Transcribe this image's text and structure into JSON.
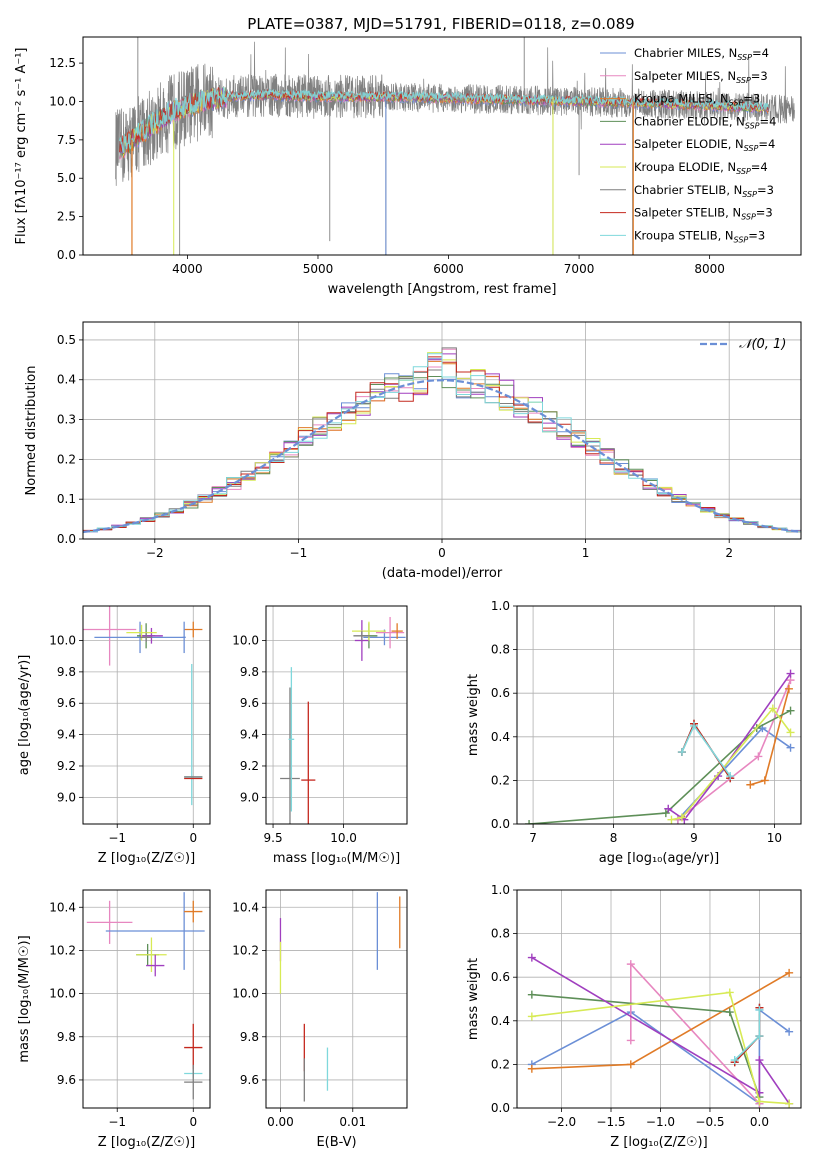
{
  "figure": {
    "title": "PLATE=0387, MJD=51791, FIBERID=0118, z=0.089"
  },
  "colors": {
    "chabrier_miles": "#6b8fd6",
    "salpeter_miles": "#e787c0",
    "kroupa_miles": "#e07b27",
    "chabrier_elodie": "#5e8f58",
    "salpeter_elodie": "#a03fbf",
    "kroupa_elodie": "#d7ea55",
    "chabrier_stelib": "#7f7f7f",
    "salpeter_stelib": "#c4281e",
    "kroupa_stelib": "#7fd8dc",
    "normal_curve": "#6b8fd6",
    "grid": "#b0b0b0"
  },
  "chart_data": [
    {
      "id": "spectrum",
      "type": "line",
      "title": "PLATE=0387, MJD=51791, FIBERID=0118, z=0.089",
      "xlabel": "wavelength [Angstrom, rest frame]",
      "ylabel": "Flux [fλ10⁻¹⁷ erg cm⁻² s⁻¹ A⁻¹]",
      "xlim": [
        3200,
        8700
      ],
      "ylim": [
        0,
        14.2
      ],
      "xticks": [
        "4000",
        "5000",
        "6000",
        "7000",
        "8000"
      ],
      "yticks": [
        "0.0",
        "2.5",
        "5.0",
        "7.5",
        "10.0",
        "12.5"
      ],
      "grid": false,
      "legend_position": "right",
      "legend": [
        {
          "label": "Chabrier MILES, N",
          "sub": "SSP",
          "suffix": "=4",
          "color_key": "chabrier_miles"
        },
        {
          "label": "Salpeter MILES, N",
          "sub": "SSP",
          "suffix": "=3",
          "color_key": "salpeter_miles"
        },
        {
          "label": "Kroupa MILES, N",
          "sub": "SSP",
          "suffix": "=3",
          "color_key": "kroupa_miles"
        },
        {
          "label": "Chabrier ELODIE, N",
          "sub": "SSP",
          "suffix": "=4",
          "color_key": "chabrier_elodie"
        },
        {
          "label": "Salpeter ELODIE, N",
          "sub": "SSP",
          "suffix": "=4",
          "color_key": "salpeter_elodie"
        },
        {
          "label": "Kroupa ELODIE, N",
          "sub": "SSP",
          "suffix": "=4",
          "color_key": "kroupa_elodie"
        },
        {
          "label": "Chabrier STELIB, N",
          "sub": "SSP",
          "suffix": "=3",
          "color_key": "chabrier_stelib"
        },
        {
          "label": "Salpeter STELIB, N",
          "sub": "SSP",
          "suffix": "=3",
          "color_key": "salpeter_stelib"
        },
        {
          "label": "Kroupa STELIB, N",
          "sub": "SSP",
          "suffix": "=3",
          "color_key": "kroupa_stelib"
        }
      ],
      "continuum": {
        "x": [
          3500,
          3700,
          3900,
          4100,
          4300,
          4600,
          5000,
          5500,
          6000,
          6500,
          7000,
          7400,
          7800,
          8200,
          8600
        ],
        "y": [
          7.0,
          8.3,
          9.4,
          10.0,
          10.3,
          10.4,
          10.3,
          10.3,
          10.2,
          10.1,
          10.0,
          9.9,
          9.8,
          9.65,
          9.5
        ]
      }
    },
    {
      "id": "residuals",
      "type": "histogram",
      "xlabel": "(data-model)/error",
      "ylabel": "Normed distribution",
      "xlim": [
        -2.5,
        2.5
      ],
      "ylim": [
        0,
        0.545
      ],
      "xticks": [
        "−2",
        "−1",
        "0",
        "1",
        "2"
      ],
      "yticks": [
        "0.0",
        "0.1",
        "0.2",
        "0.3",
        "0.4",
        "0.5"
      ],
      "grid": true,
      "legend_label": "𝒩(0, 1)",
      "legend_position": "top-right",
      "bin_width": 0.1
    },
    {
      "id": "age_vs_z",
      "type": "scatter",
      "xlabel": "Z [log₁₀(Z/Z☉)]",
      "ylabel": "age  [log₁₀(age/yr)]",
      "xlim": [
        -1.45,
        0.22
      ],
      "ylim": [
        8.83,
        10.22
      ],
      "xticks": [
        -1,
        0
      ],
      "yticks": [
        9.0,
        9.2,
        9.4,
        9.6,
        9.8,
        10.0
      ],
      "grid": true,
      "points": [
        {
          "c": "salpeter_miles",
          "x": -1.1,
          "xerr": 0.35,
          "y": 10.07,
          "yerr": 0.23
        },
        {
          "c": "chabrier_miles",
          "x": -0.7,
          "xerr": 0.6,
          "y": 10.02,
          "yerr": 0.1
        },
        {
          "c": "chabrier_elodie",
          "x": -0.62,
          "xerr": 0.12,
          "y": 10.03,
          "yerr": 0.08
        },
        {
          "c": "salpeter_elodie",
          "x": -0.55,
          "xerr": 0.15,
          "y": 10.03,
          "yerr": 0.05
        },
        {
          "c": "kroupa_elodie",
          "x": -0.68,
          "xerr": 0.2,
          "y": 10.05,
          "yerr": 0.05
        },
        {
          "c": "chabrier_stelib",
          "x": -0.62,
          "xerr": 0.08,
          "y": 10.02,
          "yerr": 0.03
        },
        {
          "c": "kroupa_miles",
          "x": 0.0,
          "xerr": 0.12,
          "y": 10.07,
          "yerr": 0.05
        },
        {
          "c": "chabrier_miles",
          "x": -0.12,
          "xerr": 0.02,
          "y": 10.02,
          "yerr": 0.1
        },
        {
          "c": "kroupa_stelib",
          "x": -0.02,
          "xerr": 0.01,
          "y": 9.4,
          "yerr": 0.45
        },
        {
          "c": "salpeter_stelib",
          "x": 0.0,
          "xerr": 0.12,
          "y": 9.12,
          "yerr": 0.0
        },
        {
          "c": "kroupa_stelib",
          "x": 0.0,
          "xerr": 0.12,
          "y": 9.13,
          "yerr": 0.0
        },
        {
          "c": "chabrier_stelib",
          "x": 0.0,
          "xerr": 0.12,
          "y": 9.13,
          "yerr": 0.0
        }
      ]
    },
    {
      "id": "age_vs_mass",
      "type": "scatter",
      "xlabel": "mass [log₁₀(M/M☉)]",
      "ylabel": "",
      "xlim": [
        9.45,
        10.45
      ],
      "ylim": [
        8.83,
        10.22
      ],
      "xticks": [
        9.5,
        10.0
      ],
      "yticks": [
        9.0,
        9.2,
        9.4,
        9.6,
        9.8,
        10.0
      ],
      "grid": true,
      "points": [
        {
          "c": "chabrier_miles",
          "x": 10.29,
          "xerr": 0.15,
          "y": 10.02,
          "yerr": 0.05
        },
        {
          "c": "salpeter_miles",
          "x": 10.33,
          "xerr": 0.1,
          "y": 10.05,
          "yerr": 0.1
        },
        {
          "c": "kroupa_miles",
          "x": 10.38,
          "xerr": 0.04,
          "y": 10.06,
          "yerr": 0.05
        },
        {
          "c": "chabrier_elodie",
          "x": 10.18,
          "xerr": 0.06,
          "y": 10.03,
          "yerr": 0.08
        },
        {
          "c": "salpeter_elodie",
          "x": 10.13,
          "xerr": 0.05,
          "y": 10.0,
          "yerr": 0.13
        },
        {
          "c": "kroupa_elodie",
          "x": 10.18,
          "xerr": 0.12,
          "y": 10.06,
          "yerr": 0.06
        },
        {
          "c": "chabrier_stelib",
          "x": 10.13,
          "xerr": 0.06,
          "y": 10.03,
          "yerr": 0.03
        },
        {
          "c": "chabrier_stelib",
          "x": 9.62,
          "xerr": 0.07,
          "y": 9.12,
          "yerr": 0.58
        },
        {
          "c": "kroupa_stelib",
          "x": 9.63,
          "xerr": 0.02,
          "y": 9.37,
          "yerr": 0.46
        },
        {
          "c": "salpeter_stelib",
          "x": 9.75,
          "xerr": 0.05,
          "y": 9.11,
          "yerr": 0.5
        }
      ]
    },
    {
      "id": "weight_vs_age",
      "type": "line",
      "xlabel": "age  [log₁₀(age/yr)]",
      "ylabel": "mass weight",
      "xlim": [
        6.8,
        10.33
      ],
      "ylim": [
        0,
        1.0
      ],
      "xticks": [
        7,
        8,
        9,
        10
      ],
      "yticks": [
        0.0,
        0.2,
        0.4,
        0.6,
        0.8,
        1.0
      ],
      "grid": true,
      "series": [
        {
          "c": "chabrier_miles",
          "x": [
            8.8,
            9.85,
            10.2
          ],
          "y": [
            0.02,
            0.44,
            0.35
          ]
        },
        {
          "c": "salpeter_miles",
          "x": [
            8.8,
            9.8,
            10.2
          ],
          "y": [
            0.02,
            0.31,
            0.66
          ]
        },
        {
          "c": "kroupa_miles",
          "x": [
            9.7,
            9.88,
            10.18
          ],
          "y": [
            0.18,
            0.2,
            0.62
          ]
        },
        {
          "c": "chabrier_elodie",
          "x": [
            6.95,
            8.65,
            9.78,
            10.2
          ],
          "y": [
            0.0,
            0.05,
            0.44,
            0.52
          ]
        },
        {
          "c": "salpeter_elodie",
          "x": [
            8.68,
            8.88,
            9.3,
            10.2
          ],
          "y": [
            0.07,
            0.02,
            0.22,
            0.69
          ]
        },
        {
          "c": "kroupa_elodie",
          "x": [
            8.72,
            8.85,
            9.98,
            10.2
          ],
          "y": [
            0.02,
            0.03,
            0.53,
            0.42
          ]
        },
        {
          "c": "chabrier_stelib",
          "x": [
            8.85,
            9.0,
            9.45
          ],
          "y": [
            0.33,
            0.46,
            0.21
          ]
        },
        {
          "c": "salpeter_stelib",
          "x": [
            8.85,
            9.0,
            9.45
          ],
          "y": [
            0.33,
            0.46,
            0.21
          ]
        },
        {
          "c": "kroupa_stelib",
          "x": [
            8.85,
            9.0,
            9.45
          ],
          "y": [
            0.33,
            0.45,
            0.22
          ]
        }
      ]
    },
    {
      "id": "mass_vs_z",
      "type": "scatter",
      "xlabel": "Z [log₁₀(Z/Z☉)]",
      "ylabel": "mass [log₁₀(M/M☉)]",
      "xlim": [
        -1.45,
        0.22
      ],
      "ylim": [
        9.47,
        10.48
      ],
      "xticks": [
        -1,
        0
      ],
      "yticks": [
        9.6,
        9.8,
        10.0,
        10.2,
        10.4
      ],
      "grid": true,
      "points": [
        {
          "c": "salpeter_miles",
          "x": -1.1,
          "xerr": 0.3,
          "y": 10.33,
          "yerr": 0.1
        },
        {
          "c": "chabrier_miles",
          "x": -0.5,
          "xerr": 0.65,
          "y": 10.29,
          "yerr": 0.0
        },
        {
          "c": "chabrier_miles",
          "x": -0.12,
          "xerr": 0.0,
          "y": 10.29,
          "yerr": 0.18
        },
        {
          "c": "kroupa_miles",
          "x": 0.0,
          "xerr": 0.12,
          "y": 10.38,
          "yerr": 0.05
        },
        {
          "c": "chabrier_elodie",
          "x": -0.6,
          "xerr": 0.15,
          "y": 10.18,
          "yerr": 0.05
        },
        {
          "c": "kroupa_elodie",
          "x": -0.55,
          "xerr": 0.2,
          "y": 10.18,
          "yerr": 0.08
        },
        {
          "c": "salpeter_elodie",
          "x": -0.5,
          "xerr": 0.12,
          "y": 10.13,
          "yerr": 0.05
        },
        {
          "c": "salpeter_stelib",
          "x": 0.0,
          "xerr": 0.12,
          "y": 9.75,
          "yerr": 0.11
        },
        {
          "c": "kroupa_stelib",
          "x": 0.0,
          "xerr": 0.12,
          "y": 9.63,
          "yerr": 0.02
        },
        {
          "c": "chabrier_stelib",
          "x": 0.0,
          "xerr": 0.12,
          "y": 9.59,
          "yerr": 0.08
        }
      ]
    },
    {
      "id": "mass_vs_ebv",
      "type": "scatter",
      "xlabel": "E(B-V)",
      "ylabel": "",
      "xlim": [
        -0.002,
        0.0175
      ],
      "ylim": [
        9.47,
        10.48
      ],
      "xticks": [
        "0.00",
        "0.01"
      ],
      "xtick_values": [
        0.0,
        0.01
      ],
      "yticks": [
        9.6,
        9.8,
        10.0,
        10.2,
        10.4
      ],
      "grid": true,
      "points": [
        {
          "c": "kroupa_miles",
          "x": 0.0165,
          "y": 10.33,
          "yerr": 0.12
        },
        {
          "c": "chabrier_miles",
          "x": 0.0134,
          "y": 10.29,
          "yerr": 0.18
        },
        {
          "c": "salpeter_elodie",
          "x": 0.0,
          "y": 10.25,
          "yerr": 0.1
        },
        {
          "c": "kroupa_elodie",
          "x": 0.0,
          "y": 10.12,
          "yerr": 0.12
        },
        {
          "c": "salpeter_stelib",
          "x": 0.0033,
          "y": 9.75,
          "yerr": 0.11
        },
        {
          "c": "chabrier_stelib",
          "x": 0.0033,
          "y": 9.6,
          "yerr": 0.1
        },
        {
          "c": "kroupa_stelib",
          "x": 0.0065,
          "y": 9.65,
          "yerr": 0.1
        }
      ]
    },
    {
      "id": "weight_vs_z",
      "type": "line",
      "xlabel": "Z [log₁₀(Z/Z☉)]",
      "ylabel": "mass weight",
      "xlim": [
        -2.45,
        0.42
      ],
      "ylim": [
        0,
        1.0
      ],
      "xticks": [
        "−2.0",
        "−1.5",
        "−1.0",
        "−0.5",
        "0.0"
      ],
      "xtick_values": [
        -2.0,
        -1.5,
        -1.0,
        -0.5,
        0.0
      ],
      "yticks": [
        0.0,
        0.2,
        0.4,
        0.6,
        0.8,
        1.0
      ],
      "grid": true,
      "series": [
        {
          "c": "chabrier_miles",
          "x": [
            -2.3,
            -1.3,
            0.0,
            0.0,
            0.3
          ],
          "y": [
            0.2,
            0.44,
            0.02,
            0.45,
            0.35
          ]
        },
        {
          "c": "salpeter_miles",
          "x": [
            -1.3,
            -1.3,
            0.0
          ],
          "y": [
            0.31,
            0.66,
            0.02
          ]
        },
        {
          "c": "kroupa_miles",
          "x": [
            -2.3,
            -1.3,
            0.3
          ],
          "y": [
            0.18,
            0.2,
            0.62
          ]
        },
        {
          "c": "chabrier_elodie",
          "x": [
            -2.3,
            -0.3,
            0.0
          ],
          "y": [
            0.52,
            0.44,
            0.05
          ]
        },
        {
          "c": "salpeter_elodie",
          "x": [
            -2.3,
            0.0,
            0.0,
            0.3
          ],
          "y": [
            0.69,
            0.07,
            0.22,
            0.02
          ]
        },
        {
          "c": "kroupa_elodie",
          "x": [
            -2.3,
            -0.3,
            0.0,
            0.3
          ],
          "y": [
            0.42,
            0.53,
            0.03,
            0.02
          ]
        },
        {
          "c": "chabrier_stelib",
          "x": [
            -0.25,
            0.0,
            0.0
          ],
          "y": [
            0.21,
            0.33,
            0.46
          ]
        },
        {
          "c": "salpeter_stelib",
          "x": [
            -0.25,
            0.0,
            0.0
          ],
          "y": [
            0.21,
            0.33,
            0.46
          ]
        },
        {
          "c": "kroupa_stelib",
          "x": [
            -0.25,
            0.0,
            0.0
          ],
          "y": [
            0.22,
            0.33,
            0.45
          ]
        }
      ]
    }
  ]
}
